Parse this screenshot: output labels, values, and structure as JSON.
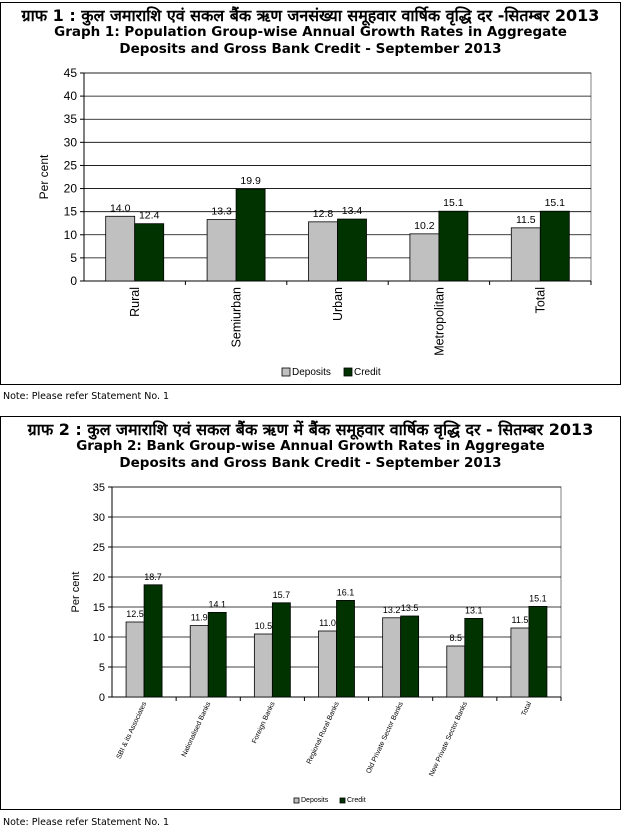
{
  "chart_data": [
    {
      "type": "bar",
      "title_hindi": "ग्राफ 1 : कुल जमाराशि एवं सकल बैंक ऋण जनसंख्या समूहवार वार्षिक वृद्धि दर -सितम्बर  2013",
      "title_line1": "Graph 1: Population Group-wise  Annual Growth Rates in Aggregate",
      "title_line2": "Deposits and Gross Bank Credit - September 2013",
      "ylabel": "Per cent",
      "ylim": [
        0,
        45
      ],
      "yticks": [
        0,
        5,
        10,
        15,
        20,
        25,
        30,
        35,
        40,
        45
      ],
      "grid": true,
      "legend_position": "bottom",
      "categories": [
        "Rural",
        "Semiurban",
        "Urban",
        "Metropolitan",
        "Total"
      ],
      "series": [
        {
          "name": "Deposits",
          "color": "#c0c0c0",
          "values": [
            14.0,
            13.3,
            12.8,
            10.2,
            11.5
          ]
        },
        {
          "name": "Credit",
          "color": "#003300",
          "values": [
            12.4,
            19.9,
            13.4,
            15.1,
            15.1
          ]
        }
      ]
    },
    {
      "type": "bar",
      "title_hindi": "ग्राफ 2 : कुल जमाराशि एवं सकल बैंक ऋण में बैंक समूहवार वार्षिक वृद्धि दर - सितम्बर 2013",
      "title_line1": "Graph 2: Bank Group-wise  Annual Growth Rates in Aggregate",
      "title_line2": "Deposits and Gross Bank Credit - September 2013",
      "ylabel": "Per cent",
      "ylim": [
        0,
        35
      ],
      "yticks": [
        0,
        5,
        10,
        15,
        20,
        25,
        30,
        35
      ],
      "grid": true,
      "legend_position": "bottom",
      "categories": [
        "SBI & its Associates",
        "Nationalised Banks",
        "Foreign Banks",
        "Regional Rural Banks",
        "Old Private Sector Banks",
        "New Private Sector Banks",
        "Total"
      ],
      "series": [
        {
          "name": "Deposits",
          "color": "#c0c0c0",
          "values": [
            12.5,
            11.9,
            10.5,
            11.0,
            13.2,
            8.5,
            11.5
          ]
        },
        {
          "name": "Credit",
          "color": "#003300",
          "values": [
            18.7,
            14.1,
            15.7,
            16.1,
            13.5,
            13.1,
            15.1
          ]
        }
      ]
    }
  ],
  "notes": {
    "note1": "Note:  Please refer Statement No. 1",
    "note2": "Note:  Please refer Statement No. 1"
  }
}
